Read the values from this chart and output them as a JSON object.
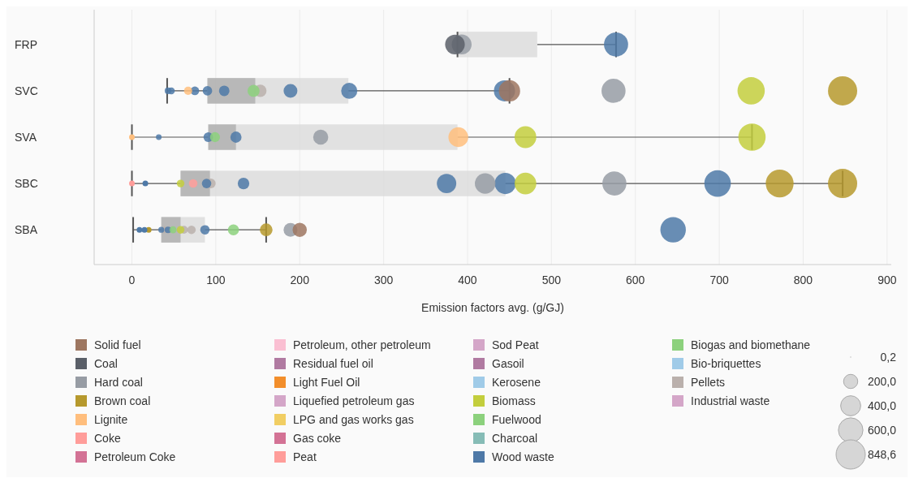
{
  "chart_data": {
    "type": "box",
    "orientation": "horizontal",
    "xlabel": "Emission factors avg. (g/GJ)",
    "categories": [
      "FRP",
      "SVC",
      "SVA",
      "SBC",
      "SBA"
    ],
    "xlim": [
      -45,
      905
    ],
    "xticks": [
      0,
      100,
      200,
      300,
      400,
      500,
      600,
      700,
      800,
      900
    ],
    "grid": "x",
    "legend": "bottom",
    "boxes": [
      {
        "low": 388,
        "q1": 388,
        "median": 388,
        "q3": 483,
        "high": 577
      },
      {
        "low": 42,
        "q1": 90,
        "median": 147,
        "q3": 258,
        "high": 450
      },
      {
        "low": 0,
        "q1": 91,
        "median": 124,
        "q3": 388,
        "high": 739
      },
      {
        "low": 0,
        "q1": 58,
        "median": 93,
        "q3": 445,
        "high": 847
      },
      {
        "low": 1.5,
        "q1": 35,
        "median": 58,
        "q3": 87,
        "high": 160
      }
    ],
    "size_legend": [
      {
        "value": 0.2,
        "label": "0,2"
      },
      {
        "value": 200,
        "label": "200,0"
      },
      {
        "value": 400,
        "label": "400,0"
      },
      {
        "value": 600,
        "label": "600,0"
      },
      {
        "value": 848.6,
        "label": "848,6"
      }
    ],
    "series": [
      {
        "type": "bubble",
        "name": "Solid fuel",
        "color": "#9d7660",
        "x": [
          "SVC",
          "SBA"
        ],
        "values": [
          450,
          200
        ],
        "sizes": [
          450,
          200
        ]
      },
      {
        "type": "bubble",
        "name": "Coal",
        "color": "#5a5f68",
        "x": [
          "FRP"
        ],
        "values": [
          385
        ],
        "sizes": [
          385
        ]
      },
      {
        "type": "bubble",
        "name": "Hard coal",
        "color": "#979ca4",
        "x": [
          "FRP",
          "SVC",
          "SVA",
          "SBC",
          "SBC",
          "SBA"
        ],
        "values": [
          393,
          574,
          225,
          421,
          575,
          189
        ],
        "sizes": [
          393,
          574,
          225,
          421,
          575,
          189
        ]
      },
      {
        "type": "bubble",
        "name": "Brown coal",
        "color": "#b6992d",
        "x": [
          "SVC",
          "SBC",
          "SBC",
          "SBA"
        ],
        "values": [
          847,
          772,
          847,
          160
        ],
        "sizes": [
          847,
          772,
          847,
          160
        ]
      },
      {
        "type": "bubble",
        "name": "Lignite",
        "color": "#ffbe7d",
        "x": [
          "SVC",
          "SVA"
        ],
        "values": [
          67,
          389
        ],
        "sizes": [
          67,
          389
        ]
      },
      {
        "type": "bubble",
        "name": "Coke",
        "color": "#ff9d9a",
        "x": [
          "SBC"
        ],
        "values": [
          73
        ],
        "sizes": [
          73
        ]
      },
      {
        "type": "bubble",
        "name": "Petroleum Coke",
        "color": "#d37295",
        "x": [
          "FRP",
          "SVC",
          "SVA",
          "SBC",
          "SBA"
        ],
        "values": [
          null,
          null,
          null,
          null,
          null
        ],
        "sizes": [
          null,
          null,
          null,
          null,
          null
        ]
      },
      {
        "type": "bubble",
        "name": "Petroleum, other petroleum",
        "color": "#fabfd2",
        "x": [
          "FRP",
          "SVC",
          "SVA",
          "SBC",
          "SBA"
        ],
        "values": [
          null,
          null,
          null,
          null,
          null
        ],
        "sizes": [
          null,
          null,
          null,
          null,
          null
        ]
      },
      {
        "type": "bubble",
        "name": "Residual fuel oil",
        "color": "#b07aa1",
        "x": [
          "FRP",
          "SVC",
          "SVA",
          "SBC",
          "SBA"
        ],
        "values": [
          null,
          null,
          null,
          null,
          null
        ],
        "sizes": [
          null,
          null,
          null,
          null,
          null
        ]
      },
      {
        "type": "bubble",
        "name": "Light Fuel Oil",
        "color": "#f28e2b",
        "x": [
          "FRP",
          "SVC",
          "SVA",
          "SBC",
          "SBA"
        ],
        "values": [
          null,
          null,
          null,
          null,
          null
        ],
        "sizes": [
          null,
          null,
          null,
          null,
          null
        ]
      },
      {
        "type": "bubble",
        "name": "Liquefied petroleum gas",
        "color": "#d4a6c8",
        "x": [
          "FRP",
          "SVC",
          "SVA",
          "SBC",
          "SBA"
        ],
        "values": [
          null,
          null,
          null,
          null,
          null
        ],
        "sizes": [
          null,
          null,
          null,
          null,
          null
        ]
      },
      {
        "type": "bubble",
        "name": "LPG and gas works gas",
        "color": "#f1ce63",
        "x": [
          "FRP",
          "SVC",
          "SVA",
          "SBC",
          "SBA"
        ],
        "values": [
          null,
          null,
          null,
          null,
          null
        ],
        "sizes": [
          null,
          null,
          null,
          null,
          null
        ]
      },
      {
        "type": "bubble",
        "name": "Gas coke",
        "color": "#d37295",
        "x": [
          "FRP",
          "SVC",
          "SVA",
          "SBC",
          "SBA"
        ],
        "values": [
          null,
          null,
          null,
          null,
          null
        ],
        "sizes": [
          null,
          null,
          null,
          null,
          null
        ]
      },
      {
        "type": "bubble",
        "name": "Peat",
        "color": "#ff9d9a",
        "x": [
          "FRP",
          "SVC",
          "SVA",
          "SBC",
          "SBA"
        ],
        "values": [
          null,
          null,
          null,
          null,
          null
        ],
        "sizes": [
          null,
          null,
          null,
          null,
          null
        ]
      },
      {
        "type": "bubble",
        "name": "Sod Peat",
        "color": "#d4a6c8",
        "x": [
          "FRP",
          "SVC",
          "SVA",
          "SBC",
          "SBA"
        ],
        "values": [
          null,
          null,
          null,
          null,
          null
        ],
        "sizes": [
          null,
          null,
          null,
          null,
          null
        ]
      },
      {
        "type": "bubble",
        "name": "Gasoil",
        "color": "#b07aa1",
        "x": [
          "FRP",
          "SVC",
          "SVA",
          "SBC",
          "SBA"
        ],
        "values": [
          null,
          null,
          null,
          null,
          null
        ],
        "sizes": [
          null,
          null,
          null,
          null,
          null
        ]
      },
      {
        "type": "bubble",
        "name": "Kerosene",
        "color": "#a0cbe8",
        "x": [
          "FRP",
          "SVC",
          "SVA",
          "SBC",
          "SBA"
        ],
        "values": [
          null,
          null,
          null,
          null,
          null
        ],
        "sizes": [
          null,
          null,
          null,
          null,
          null
        ]
      },
      {
        "type": "bubble",
        "name": "Biomass",
        "color": "#c3ce3d",
        "x": [
          "SVC",
          "SVA",
          "SVA",
          "SBC",
          "SBC",
          "SBA"
        ],
        "values": [
          738,
          469,
          739,
          58,
          469,
          58
        ],
        "sizes": [
          738,
          469,
          739,
          58,
          469,
          58
        ]
      },
      {
        "type": "bubble",
        "name": "Fuelwood",
        "color": "#8cd17d",
        "x": [
          "SVC",
          "SVA",
          "SBA",
          "SBA"
        ],
        "values": [
          145,
          99,
          49,
          121
        ],
        "sizes": [
          145,
          99,
          49,
          121
        ]
      },
      {
        "type": "bubble",
        "name": "Charcoal",
        "color": "#86bcb6",
        "x": [
          "FRP",
          "SVC",
          "SVA",
          "SBC",
          "SBA"
        ],
        "values": [
          null,
          null,
          null,
          null,
          null
        ],
        "sizes": [
          null,
          null,
          null,
          null,
          null
        ]
      },
      {
        "type": "bubble",
        "name": "Wood waste",
        "color": "#4e79a7",
        "x": [
          "FRP",
          "SVC",
          "SVC",
          "SVC",
          "SVC",
          "SVC",
          "SVC",
          "SVC",
          "SVC",
          "SVA",
          "SVA",
          "SVA",
          "SBC",
          "SBC",
          "SBC",
          "SBC",
          "SBC",
          "SBA",
          "SBA",
          "SBA",
          "SBA"
        ],
        "values": [
          577,
          43,
          47,
          75,
          90,
          110,
          189,
          259,
          444,
          32,
          91,
          124,
          89,
          133,
          375,
          445,
          698,
          35,
          43,
          87,
          645
        ],
        "sizes": [
          577,
          43,
          47,
          75,
          90,
          110,
          189,
          259,
          444,
          32,
          91,
          124,
          89,
          133,
          375,
          445,
          698,
          35,
          43,
          87,
          645
        ]
      },
      {
        "type": "bubble",
        "name": "Biogas and biomethane",
        "color": "#8cd17d",
        "x": [
          "FRP",
          "SVC",
          "SVA",
          "SBC",
          "SBA"
        ],
        "values": [
          null,
          null,
          null,
          null,
          null
        ],
        "sizes": [
          null,
          null,
          null,
          null,
          null
        ]
      },
      {
        "type": "bubble",
        "name": "Bio-briquettes",
        "color": "#a0cbe8",
        "x": [
          "FRP",
          "SVC",
          "SVA",
          "SBC",
          "SBA"
        ],
        "values": [
          null,
          null,
          null,
          null,
          null
        ],
        "sizes": [
          null,
          null,
          null,
          null,
          null
        ]
      },
      {
        "type": "bubble",
        "name": "Pellets",
        "color": "#bab0ac",
        "x": [
          "SVC",
          "SBC",
          "SBA",
          "SBA",
          "SBA"
        ],
        "values": [
          153,
          94,
          39,
          62,
          71
        ],
        "sizes": [
          153,
          94,
          39,
          62,
          71
        ]
      },
      {
        "type": "bubble",
        "name": "Industrial waste",
        "color": "#d4a6c8",
        "x": [
          "FRP",
          "SVC",
          "SVA",
          "SBC",
          "SBA"
        ],
        "values": [
          null,
          null,
          null,
          null,
          null
        ],
        "sizes": [
          null,
          null,
          null,
          null,
          null
        ]
      },
      {
        "type": "scatter",
        "color": "#4e79a7",
        "x": [
          "SBC",
          "SBA",
          "SBA"
        ],
        "values": [
          16,
          9,
          15
        ]
      },
      {
        "type": "scatter",
        "color": "#b6992d",
        "x": [
          "SBA"
        ],
        "values": [
          20
        ]
      },
      {
        "type": "scatter",
        "color": "#ffbe7d",
        "x": [
          "SVA"
        ],
        "values": [
          0
        ]
      },
      {
        "type": "scatter",
        "color": "#ff9d9a",
        "x": [
          "SBC"
        ],
        "values": [
          0
        ]
      }
    ]
  }
}
